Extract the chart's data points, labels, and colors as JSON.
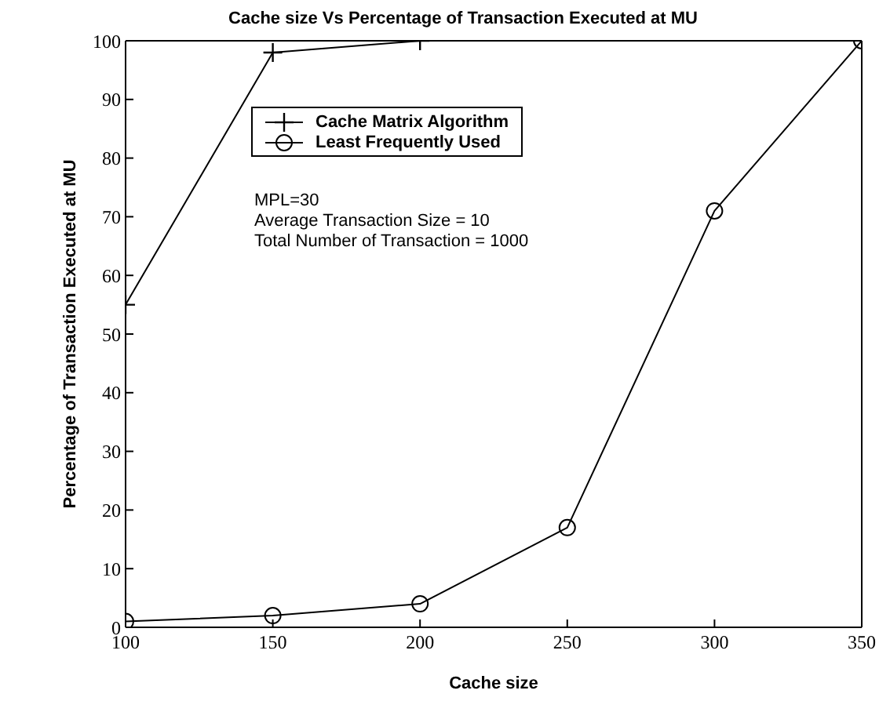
{
  "chart_data": {
    "type": "line",
    "title": "Cache size Vs Percentage of Transaction Executed at MU",
    "xlabel": "Cache size",
    "ylabel": "Percentage of Transaction Executed at MU",
    "series": [
      {
        "name": "Cache Matrix Algorithm",
        "color": "#000000",
        "marker": "cross",
        "x": [
          100,
          150,
          200
        ],
        "values": [
          55,
          98,
          100
        ]
      },
      {
        "name": "Least Frequently Used",
        "color": "#000000",
        "marker": "circle",
        "x": [
          100,
          150,
          200,
          250,
          300,
          350
        ],
        "values": [
          1,
          2,
          4,
          17,
          71,
          100
        ]
      }
    ],
    "xlim": [
      100,
      350
    ],
    "xticks": [
      100,
      150,
      200,
      250,
      300,
      350
    ],
    "ylim": [
      0,
      100
    ],
    "yticks": [
      0,
      10,
      20,
      30,
      40,
      50,
      60,
      70,
      80,
      90,
      100
    ],
    "legend": "top left",
    "grid": false,
    "annotations": [
      "MPL=30",
      "Average Transaction Size = 10",
      "Total Number of Transaction = 1000"
    ]
  }
}
